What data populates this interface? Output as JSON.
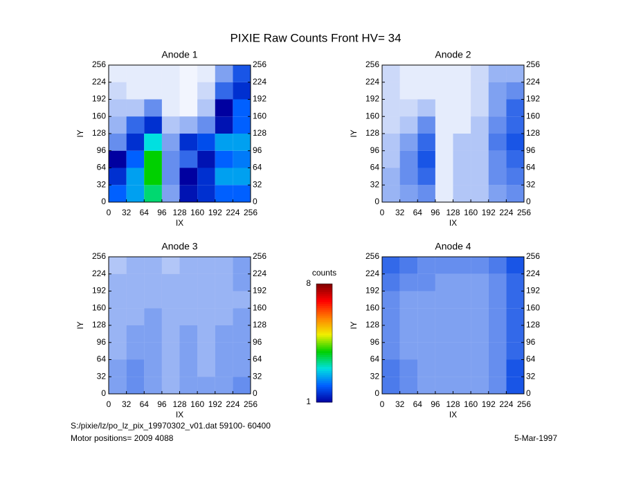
{
  "title": "PIXIE Raw Counts Front HV= 34",
  "footer": {
    "file": "S:/pixie/lz/po_lz_pix_19970302_v01.dat   59100- 60400",
    "motor": "Motor positions= 2009 4088",
    "date": "5-Mar-1997"
  },
  "chart_data": [
    {
      "type": "heatmap",
      "title": "Anode 1",
      "xlabel": "IX",
      "ylabel": "IY",
      "xlim": [
        0,
        256
      ],
      "ylim": [
        0,
        256
      ],
      "xticks": [
        0,
        32,
        64,
        96,
        128,
        160,
        192,
        224,
        256
      ],
      "yticks": [
        0,
        32,
        64,
        96,
        128,
        160,
        192,
        224,
        256
      ],
      "xbins": [
        0,
        32,
        64,
        96,
        128,
        160,
        192,
        224,
        256
      ],
      "ybins": [
        0,
        32,
        64,
        96,
        128,
        160,
        192,
        224,
        256
      ],
      "values": [
        [
          2,
          2.5,
          3.5,
          0.5,
          1.2,
          1.5,
          2,
          2
        ],
        [
          1.5,
          2.5,
          4,
          0.6,
          1,
          1.5,
          2.5,
          2.5
        ],
        [
          1,
          2,
          4,
          0.6,
          0.8,
          1.2,
          2,
          2.2
        ],
        [
          0.6,
          1.5,
          3,
          0.5,
          1.5,
          1.8,
          2.5,
          2.5
        ],
        [
          0.4,
          0.8,
          1.5,
          0.3,
          0.4,
          0.6,
          1.2,
          2
        ],
        [
          0.3,
          0.3,
          0.6,
          0.1,
          0.05,
          0.3,
          1,
          2
        ],
        [
          0.2,
          0.1,
          0.1,
          0.1,
          0.05,
          0.2,
          0.8,
          1.5
        ],
        [
          0.1,
          0.1,
          0.1,
          0.1,
          0.05,
          0.1,
          0.5,
          0.9
        ]
      ]
    },
    {
      "type": "heatmap",
      "title": "Anode 2",
      "xlabel": "IX",
      "ylabel": "IY",
      "xlim": [
        0,
        256
      ],
      "ylim": [
        0,
        256
      ],
      "xticks": [
        0,
        32,
        64,
        96,
        128,
        160,
        192,
        224,
        256
      ],
      "yticks": [
        0,
        32,
        64,
        96,
        128,
        160,
        192,
        224,
        256
      ],
      "xbins": [
        0,
        32,
        64,
        96,
        128,
        160,
        192,
        224,
        256
      ],
      "ybins": [
        0,
        32,
        64,
        96,
        128,
        160,
        192,
        224,
        256
      ],
      "values": [
        [
          0.4,
          0.5,
          0.6,
          0.1,
          0.3,
          0.3,
          0.5,
          0.6
        ],
        [
          0.4,
          0.6,
          0.8,
          0.1,
          0.3,
          0.3,
          0.6,
          0.7
        ],
        [
          0.3,
          0.6,
          0.9,
          0.1,
          0.3,
          0.3,
          0.6,
          0.8
        ],
        [
          0.3,
          0.5,
          0.8,
          0.1,
          0.3,
          0.3,
          0.7,
          0.9
        ],
        [
          0.2,
          0.3,
          0.6,
          0.1,
          0.1,
          0.3,
          0.6,
          0.8
        ],
        [
          0.2,
          0.2,
          0.3,
          0.1,
          0.1,
          0.2,
          0.5,
          0.8
        ],
        [
          0.2,
          0.1,
          0.1,
          0.1,
          0.1,
          0.2,
          0.5,
          0.6
        ],
        [
          0.2,
          0.1,
          0.1,
          0.1,
          0.1,
          0.2,
          0.4,
          0.4
        ]
      ]
    },
    {
      "type": "heatmap",
      "title": "Anode 3",
      "xlabel": "IX",
      "ylabel": "IY",
      "xlim": [
        0,
        256
      ],
      "ylim": [
        0,
        256
      ],
      "xticks": [
        0,
        32,
        64,
        96,
        128,
        160,
        192,
        224,
        256
      ],
      "yticks": [
        0,
        32,
        64,
        96,
        128,
        160,
        192,
        224,
        256
      ],
      "xbins": [
        0,
        32,
        64,
        96,
        128,
        160,
        192,
        224,
        256
      ],
      "ybins": [
        0,
        32,
        64,
        96,
        128,
        160,
        192,
        224,
        256
      ],
      "values": [
        [
          0.5,
          0.6,
          0.5,
          0.4,
          0.5,
          0.5,
          0.5,
          0.6
        ],
        [
          0.5,
          0.6,
          0.5,
          0.4,
          0.5,
          0.4,
          0.5,
          0.5
        ],
        [
          0.4,
          0.5,
          0.5,
          0.4,
          0.5,
          0.4,
          0.5,
          0.5
        ],
        [
          0.4,
          0.5,
          0.5,
          0.4,
          0.5,
          0.4,
          0.5,
          0.5
        ],
        [
          0.4,
          0.4,
          0.5,
          0.4,
          0.4,
          0.4,
          0.4,
          0.5
        ],
        [
          0.4,
          0.4,
          0.4,
          0.4,
          0.4,
          0.4,
          0.4,
          0.4
        ],
        [
          0.4,
          0.4,
          0.4,
          0.4,
          0.4,
          0.4,
          0.4,
          0.5
        ],
        [
          0.3,
          0.4,
          0.4,
          0.3,
          0.4,
          0.4,
          0.4,
          0.5
        ]
      ]
    },
    {
      "type": "heatmap",
      "title": "Anode 4",
      "xlabel": "IX",
      "ylabel": "IY",
      "xlim": [
        0,
        256
      ],
      "ylim": [
        0,
        256
      ],
      "xticks": [
        0,
        32,
        64,
        96,
        128,
        160,
        192,
        224,
        256
      ],
      "yticks": [
        0,
        32,
        64,
        96,
        128,
        160,
        192,
        224,
        256
      ],
      "xbins": [
        0,
        32,
        64,
        96,
        128,
        160,
        192,
        224,
        256
      ],
      "ybins": [
        0,
        32,
        64,
        96,
        128,
        160,
        192,
        224,
        256
      ],
      "values": [
        [
          0.7,
          0.6,
          0.5,
          0.5,
          0.5,
          0.5,
          0.6,
          0.9
        ],
        [
          0.7,
          0.6,
          0.5,
          0.5,
          0.5,
          0.5,
          0.6,
          0.9
        ],
        [
          0.6,
          0.5,
          0.5,
          0.5,
          0.5,
          0.5,
          0.6,
          0.8
        ],
        [
          0.6,
          0.5,
          0.5,
          0.5,
          0.5,
          0.5,
          0.6,
          0.8
        ],
        [
          0.6,
          0.5,
          0.5,
          0.5,
          0.5,
          0.5,
          0.6,
          0.8
        ],
        [
          0.6,
          0.5,
          0.5,
          0.5,
          0.5,
          0.5,
          0.6,
          0.8
        ],
        [
          0.7,
          0.6,
          0.6,
          0.5,
          0.5,
          0.5,
          0.6,
          0.8
        ],
        [
          0.8,
          0.7,
          0.6,
          0.6,
          0.6,
          0.6,
          0.7,
          0.9
        ]
      ]
    },
    {
      "type": "colorbar",
      "title": "counts",
      "lim": [
        1,
        8
      ],
      "ticks": [
        1,
        8
      ],
      "colormap": [
        "#0000a0",
        "#0060ff",
        "#00e0e0",
        "#00d000",
        "#f0f000",
        "#ff8000",
        "#ff0000",
        "#800000"
      ]
    }
  ]
}
